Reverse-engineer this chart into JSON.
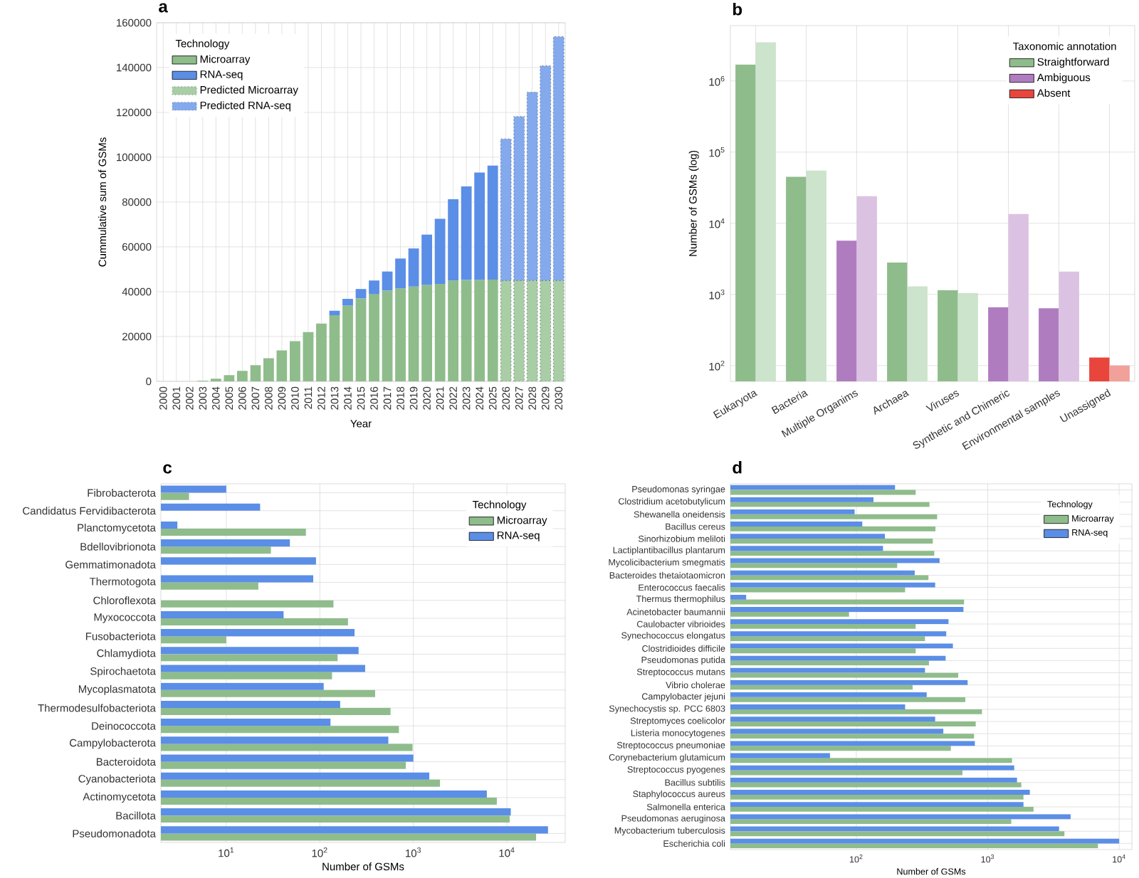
{
  "chart_data": [
    {
      "type": "bar",
      "title": "a",
      "xlabel": "Year",
      "ylabel": "Cummulative sum of GSMs",
      "stacked": true,
      "grid": true,
      "legend": "top left",
      "legend_title": "Technology",
      "categories": [
        "2000",
        "2001",
        "2002",
        "2003",
        "2004",
        "2005",
        "2006",
        "2007",
        "2008",
        "2009",
        "2010",
        "2011",
        "2012",
        "2013",
        "2014",
        "2015",
        "2016",
        "2017",
        "2018",
        "2019",
        "2020",
        "2021",
        "2022",
        "2023",
        "2024",
        "2025",
        "2026",
        "2027",
        "2028",
        "2029",
        "2030"
      ],
      "ylim": [
        0,
        160000
      ],
      "yticks": [
        0,
        20000,
        40000,
        60000,
        80000,
        100000,
        120000,
        140000,
        160000
      ],
      "series": [
        {
          "name": "Microarray",
          "color": "#8fbc8b",
          "values": [
            0,
            0,
            0,
            300,
            1200,
            2800,
            4700,
            7200,
            10300,
            13800,
            17900,
            22000,
            25800,
            29500,
            33800,
            37000,
            39000,
            40500,
            41500,
            42300,
            43000,
            43500,
            45000,
            45200,
            45300,
            45400,
            null,
            null,
            null,
            null,
            null
          ]
        },
        {
          "name": "RNA-seq",
          "color": "#5b8ee6",
          "values": [
            0,
            0,
            0,
            0,
            0,
            0,
            0,
            0,
            0,
            0,
            0,
            0,
            0,
            2000,
            3000,
            4200,
            6000,
            8500,
            13300,
            17000,
            22500,
            29000,
            36300,
            41800,
            47900,
            50900,
            null,
            null,
            null,
            null,
            null
          ]
        },
        {
          "name": "Predicted Microarray",
          "color": "#a9cda5",
          "line_style": "dotted",
          "values": [
            null,
            null,
            null,
            null,
            null,
            null,
            null,
            null,
            null,
            null,
            null,
            null,
            null,
            null,
            null,
            null,
            null,
            null,
            null,
            null,
            null,
            null,
            null,
            null,
            null,
            null,
            45000,
            45000,
            45000,
            45000,
            45000
          ]
        },
        {
          "name": "Predicted RNA-seq",
          "color": "#84a9ec",
          "line_style": "dotted",
          "values": [
            null,
            null,
            null,
            null,
            null,
            null,
            null,
            null,
            null,
            null,
            null,
            null,
            null,
            null,
            null,
            null,
            null,
            null,
            null,
            null,
            null,
            null,
            null,
            null,
            null,
            null,
            63200,
            73200,
            84000,
            95800,
            108800
          ]
        }
      ]
    },
    {
      "type": "bar",
      "title": "b",
      "ylabel": "Number of GSMs (log)",
      "log": true,
      "grid": true,
      "legend": "top right",
      "legend_title": "Taxonomic annotation",
      "categories": [
        "Eukaryota",
        "Bacteria",
        "Multiple Organims",
        "Archaea",
        "Viruses",
        "Synthetic and Chimeric",
        "Environmental samples",
        "Unassigned"
      ],
      "ylim": [
        60,
        6000000
      ],
      "yticks": [
        {
          "value": 100,
          "label": "10$^{2}$"
        },
        {
          "value": 1000,
          "label": "10$^{3}$"
        },
        {
          "value": 10000,
          "label": "10$^{4}$"
        },
        {
          "value": 100000,
          "label": "10$^{5}$"
        },
        {
          "value": 1000000,
          "label": "10$^{6}$"
        }
      ],
      "series": [
        {
          "name": "Straightforward",
          "color": "#8fbc8b",
          "values": [
            1700000,
            45000,
            null,
            2800,
            1150,
            null,
            null,
            null
          ]
        },
        {
          "name": "Ambiguous",
          "color": "#b07cc0",
          "values": [
            null,
            null,
            5700,
            null,
            null,
            660,
            640,
            null
          ]
        },
        {
          "name": "Absent",
          "color": "#e8453c",
          "values": [
            null,
            null,
            null,
            null,
            null,
            null,
            null,
            130
          ]
        },
        {
          "color": "#cce3cc",
          "values": [
            3500000,
            55000,
            null,
            1300,
            1050,
            null,
            null,
            null
          ]
        },
        {
          "color": "#dcc2e2",
          "values": [
            null,
            null,
            24000,
            null,
            null,
            13500,
            2100,
            null
          ]
        },
        {
          "color": "#f2a09a",
          "values": [
            null,
            null,
            null,
            null,
            null,
            null,
            null,
            100
          ]
        }
      ]
    },
    {
      "type": "bar",
      "title": "c",
      "xlabel": "Number of GSMs",
      "orientation": "horizontal",
      "log": "x",
      "grid": true,
      "legend": "top right",
      "legend_title": "Technology",
      "categories": [
        "Fibrobacterota",
        "Candidatus Fervidibacterota",
        "Planctomycetota",
        "Bdellovibrionota",
        "Gemmatimonadota",
        "Thermotogota",
        "Chloroflexota",
        "Myxococcota",
        "Fusobacteriota",
        "Chlamydiota",
        "Spirochaetota",
        "Mycoplasmatota",
        "Thermodesulfobacteriota",
        "Deinococcota",
        "Campylobacterota",
        "Bacteroidota",
        "Cyanobacteriota",
        "Actinomycetota",
        "Bacillota",
        "Pseudomonadota"
      ],
      "xlim": [
        2,
        42000
      ],
      "xticks": [
        {
          "value": 10,
          "label": "10$^{1}$"
        },
        {
          "value": 100,
          "label": "10$^{2}$"
        },
        {
          "value": 1000,
          "label": "10$^{3}$"
        },
        {
          "value": 10000,
          "label": "10$^{4}$"
        }
      ],
      "series": [
        {
          "name": "Microarray",
          "color": "#8fbc8b",
          "values": [
            4,
            null,
            71,
            30,
            null,
            22,
            140,
            200,
            10,
            155,
            135,
            390,
            570,
            700,
            980,
            830,
            1930,
            7800,
            10700,
            20500
          ]
        },
        {
          "name": "RNA-seq",
          "color": "#5b8ee6",
          "values": [
            10,
            23,
            3,
            48,
            91,
            85,
            null,
            41,
            235,
            260,
            305,
            110,
            165,
            130,
            540,
            1000,
            1480,
            6100,
            11000,
            27500
          ]
        }
      ]
    },
    {
      "type": "bar",
      "title": "d",
      "xlabel": "Number of GSMs",
      "orientation": "horizontal",
      "log": "x",
      "grid": true,
      "legend": "top right",
      "legend_title": "Technology",
      "categories": [
        "Pseudomonas syringae",
        "Clostridium acetobutylicum",
        "Shewanella oneidensis",
        "Bacillus cereus",
        "Sinorhizobium meliloti",
        "Lactiplantibacillus plantarum",
        "Mycolicibacterium smegmatis",
        "Bacteroides thetaiotaomicron",
        "Enterococcus faecalis",
        "Thermus thermophilus",
        "Acinetobacter baumannii",
        "Caulobacter vibrioides",
        "Synechococcus elongatus",
        "Clostridioides difficile",
        "Pseudomonas putida",
        "Streptococcus mutans",
        "Vibrio cholerae",
        "Campylobacter jejuni",
        "Synechocystis sp. PCC 6803",
        "Streptomyces coelicolor",
        "Listeria monocytogenes",
        "Streptococcus pneumoniae",
        "Corynebacterium glutamicum",
        "Streptococcus pyogenes",
        "Bacillus subtilis",
        "Staphylococcus aureus",
        "Salmonella enterica",
        "Pseudomonas aeruginosa",
        "Mycobacterium tuberculosis",
        "Escherichia coli"
      ],
      "xlim": [
        11,
        12500
      ],
      "xticks": [
        {
          "value": 100,
          "label": "10$^{2}$"
        },
        {
          "value": 1000,
          "label": "10$^{3}$"
        },
        {
          "value": 10000,
          "label": "10$^{4}$"
        }
      ],
      "series": [
        {
          "name": "Microarray",
          "color": "#8fbc8b",
          "values": [
            283,
            360,
            412,
            400,
            382,
            392,
            205,
            354,
            235,
            660,
            88,
            283,
            333,
            283,
            357,
            596,
            268,
            675,
            903,
            810,
            786,
            524,
            1530,
            642,
            1800,
            1870,
            2230,
            1510,
            3840,
            6900
          ]
        },
        {
          "name": "RNA-seq",
          "color": "#5b8ee6",
          "values": [
            197,
            135,
            97,
            111,
            165,
            160,
            430,
            278,
            398,
            14.5,
            653,
            503,
            483,
            543,
            478,
            333,
            703,
            343,
            235,
            398,
            459,
            798,
            63,
            1590,
            1670,
            2090,
            1870,
            4270,
            3490,
            10000
          ]
        }
      ]
    }
  ]
}
